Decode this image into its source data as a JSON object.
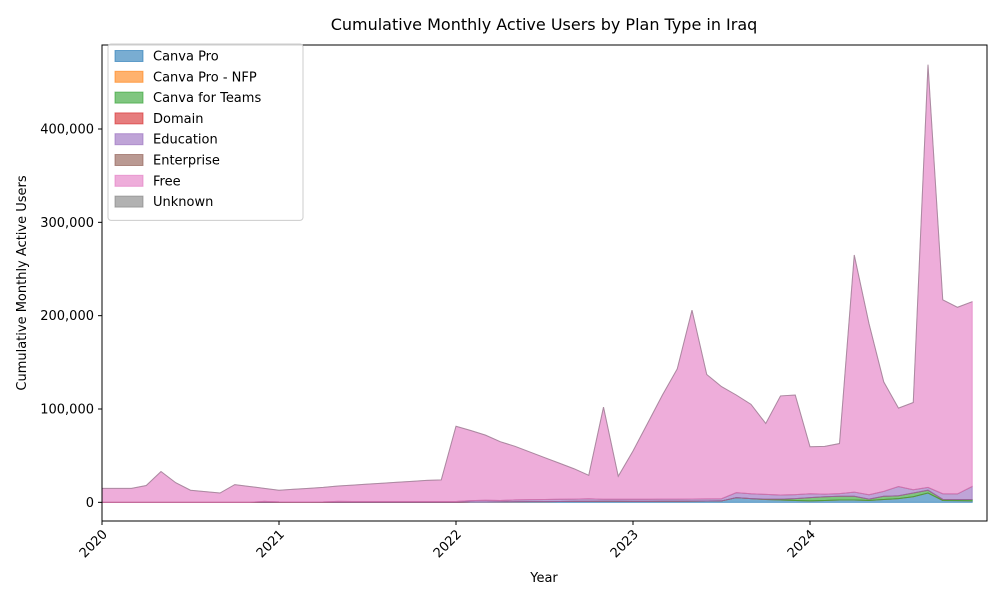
{
  "chart_data": {
    "type": "area",
    "stacked": true,
    "title": "Cumulative Monthly Active Users by Plan Type in Iraq",
    "xlabel": "Year",
    "ylabel": "Cumulative Monthly Active Users",
    "xlim": [
      2020.0,
      2025.0
    ],
    "ylim": [
      -20000,
      490000
    ],
    "x_ticks": [
      {
        "value": 2020,
        "label": "2020"
      },
      {
        "value": 2021,
        "label": "2021"
      },
      {
        "value": 2022,
        "label": "2022"
      },
      {
        "value": 2023,
        "label": "2023"
      },
      {
        "value": 2024,
        "label": "2024"
      }
    ],
    "y_ticks": [
      {
        "value": 0,
        "label": "0"
      },
      {
        "value": 100000,
        "label": "100,000"
      },
      {
        "value": 200000,
        "label": "200,000"
      },
      {
        "value": 300000,
        "label": "300,000"
      },
      {
        "value": 400000,
        "label": "400,000"
      }
    ],
    "grid": false,
    "legend_position": "top-left",
    "x": [
      "2020-01",
      "2020-02",
      "2020-03",
      "2020-04",
      "2020-05",
      "2020-06",
      "2020-07",
      "2020-08",
      "2020-09",
      "2020-10",
      "2020-11",
      "2020-12",
      "2021-01",
      "2021-02",
      "2021-03",
      "2021-04",
      "2021-05",
      "2021-06",
      "2021-07",
      "2021-08",
      "2021-09",
      "2021-10",
      "2021-11",
      "2021-12",
      "2022-01",
      "2022-02",
      "2022-03",
      "2022-04",
      "2022-05",
      "2022-06",
      "2022-07",
      "2022-08",
      "2022-09",
      "2022-10",
      "2022-11",
      "2022-12",
      "2023-01",
      "2023-02",
      "2023-03",
      "2023-04",
      "2023-05",
      "2023-06",
      "2023-07",
      "2023-08",
      "2023-09",
      "2023-10",
      "2023-11",
      "2023-12",
      "2024-01",
      "2024-02",
      "2024-03",
      "2024-04",
      "2024-05",
      "2024-06",
      "2024-07",
      "2024-08",
      "2024-09",
      "2024-10",
      "2024-11",
      "2024-12"
    ],
    "series": [
      {
        "name": "Canva Pro",
        "color": "#1f77b4",
        "values": [
          0,
          0,
          0,
          0,
          0,
          0,
          0,
          0,
          0,
          0,
          0,
          0,
          0,
          0,
          0,
          0,
          0,
          0,
          0,
          0,
          0,
          0,
          0,
          0,
          0,
          300,
          400,
          500,
          600,
          700,
          800,
          900,
          1000,
          1000,
          1200,
          1100,
          1000,
          1000,
          1100,
          1200,
          1300,
          1400,
          1500,
          5000,
          4000,
          3000,
          2500,
          2000,
          1500,
          2000,
          2500,
          2500,
          2000,
          3000,
          4000,
          6000,
          10000,
          2000,
          1800,
          1600
        ]
      },
      {
        "name": "Canva Pro - NFP",
        "color": "#ff7f0e",
        "values": [
          0,
          0,
          0,
          0,
          0,
          0,
          0,
          0,
          0,
          0,
          0,
          0,
          0,
          0,
          0,
          0,
          0,
          0,
          0,
          0,
          0,
          0,
          0,
          0,
          0,
          0,
          0,
          0,
          0,
          0,
          0,
          0,
          0,
          0,
          0,
          0,
          0,
          0,
          0,
          0,
          0,
          0,
          0,
          0,
          0,
          0,
          0,
          0,
          0,
          0,
          0,
          0,
          0,
          0,
          0,
          0,
          0,
          0,
          0,
          0
        ]
      },
      {
        "name": "Canva for Teams",
        "color": "#2ca02c",
        "values": [
          0,
          0,
          0,
          0,
          0,
          0,
          0,
          0,
          0,
          0,
          0,
          0,
          0,
          0,
          0,
          0,
          0,
          0,
          0,
          0,
          0,
          0,
          0,
          0,
          0,
          0,
          0,
          0,
          0,
          0,
          0,
          0,
          0,
          0,
          0,
          0,
          0,
          0,
          0,
          0,
          0,
          0,
          0,
          0,
          0,
          500,
          1000,
          2000,
          3500,
          4000,
          4000,
          4000,
          1500,
          3500,
          3000,
          4000,
          3000,
          1200,
          1200,
          1400
        ]
      },
      {
        "name": "Domain",
        "color": "#d62728",
        "values": [
          0,
          0,
          0,
          0,
          0,
          0,
          0,
          0,
          0,
          0,
          0,
          0,
          0,
          0,
          0,
          0,
          0,
          0,
          0,
          0,
          0,
          0,
          0,
          0,
          0,
          0,
          0,
          0,
          0,
          0,
          0,
          0,
          0,
          0,
          0,
          0,
          0,
          0,
          0,
          0,
          0,
          0,
          0,
          0,
          0,
          0,
          0,
          0,
          0,
          0,
          0,
          0,
          0,
          0,
          0,
          0,
          0,
          0,
          0,
          0
        ]
      },
      {
        "name": "Education",
        "color": "#9467bd",
        "values": [
          0,
          0,
          0,
          0,
          0,
          0,
          0,
          0,
          0,
          0,
          0,
          1000,
          500,
          400,
          400,
          500,
          1000,
          900,
          900,
          900,
          900,
          900,
          900,
          900,
          900,
          1500,
          1800,
          1400,
          2000,
          2200,
          2300,
          2400,
          2400,
          2800,
          2100,
          2200,
          2300,
          2300,
          2300,
          2300,
          2300,
          2300,
          2400,
          5400,
          5200,
          5000,
          4300,
          4300,
          4200,
          2800,
          2800,
          4500,
          4700,
          5200,
          10000,
          3500,
          3000,
          6000,
          6000,
          14000
        ]
      },
      {
        "name": "Enterprise",
        "color": "#8c564b",
        "values": [
          0,
          0,
          0,
          0,
          0,
          0,
          0,
          0,
          0,
          0,
          0,
          0,
          0,
          0,
          0,
          0,
          0,
          0,
          0,
          0,
          0,
          0,
          0,
          0,
          0,
          0,
          0,
          0,
          0,
          0,
          0,
          0,
          0,
          0,
          0,
          0,
          0,
          0,
          0,
          0,
          0,
          0,
          0,
          0,
          0,
          0,
          0,
          0,
          0,
          0,
          0,
          0,
          0,
          0,
          0,
          0,
          0,
          0,
          0,
          0
        ]
      },
      {
        "name": "Free",
        "color": "#e377c2",
        "values": [
          15000,
          15000,
          15000,
          18000,
          33000,
          21000,
          13000,
          11500,
          10000,
          19000,
          17000,
          14000,
          12500,
          13600,
          14600,
          15500,
          16500,
          17600,
          18600,
          19600,
          20600,
          21600,
          22600,
          23100,
          80600,
          75200,
          69800,
          63100,
          57400,
          51100,
          44900,
          38700,
          32600,
          25200,
          98700,
          24700,
          51700,
          81700,
          111700,
          139500,
          202400,
          133300,
          120100,
          104600,
          95800,
          76000,
          106200,
          106700,
          50300,
          51200,
          53700,
          254000,
          183300,
          117300,
          84000,
          93500,
          453000,
          207800,
          200000,
          198000
        ]
      },
      {
        "name": "Unknown",
        "color": "#7f7f7f",
        "values": [
          0,
          0,
          0,
          0,
          0,
          0,
          0,
          0,
          0,
          0,
          0,
          0,
          0,
          0,
          0,
          0,
          0,
          0,
          0,
          0,
          0,
          0,
          0,
          0,
          0,
          0,
          0,
          0,
          0,
          0,
          0,
          0,
          0,
          0,
          0,
          0,
          0,
          0,
          0,
          0,
          0,
          0,
          0,
          0,
          0,
          0,
          0,
          0,
          0,
          0,
          0,
          0,
          0,
          0,
          0,
          0,
          0,
          0,
          0,
          0
        ]
      }
    ]
  }
}
